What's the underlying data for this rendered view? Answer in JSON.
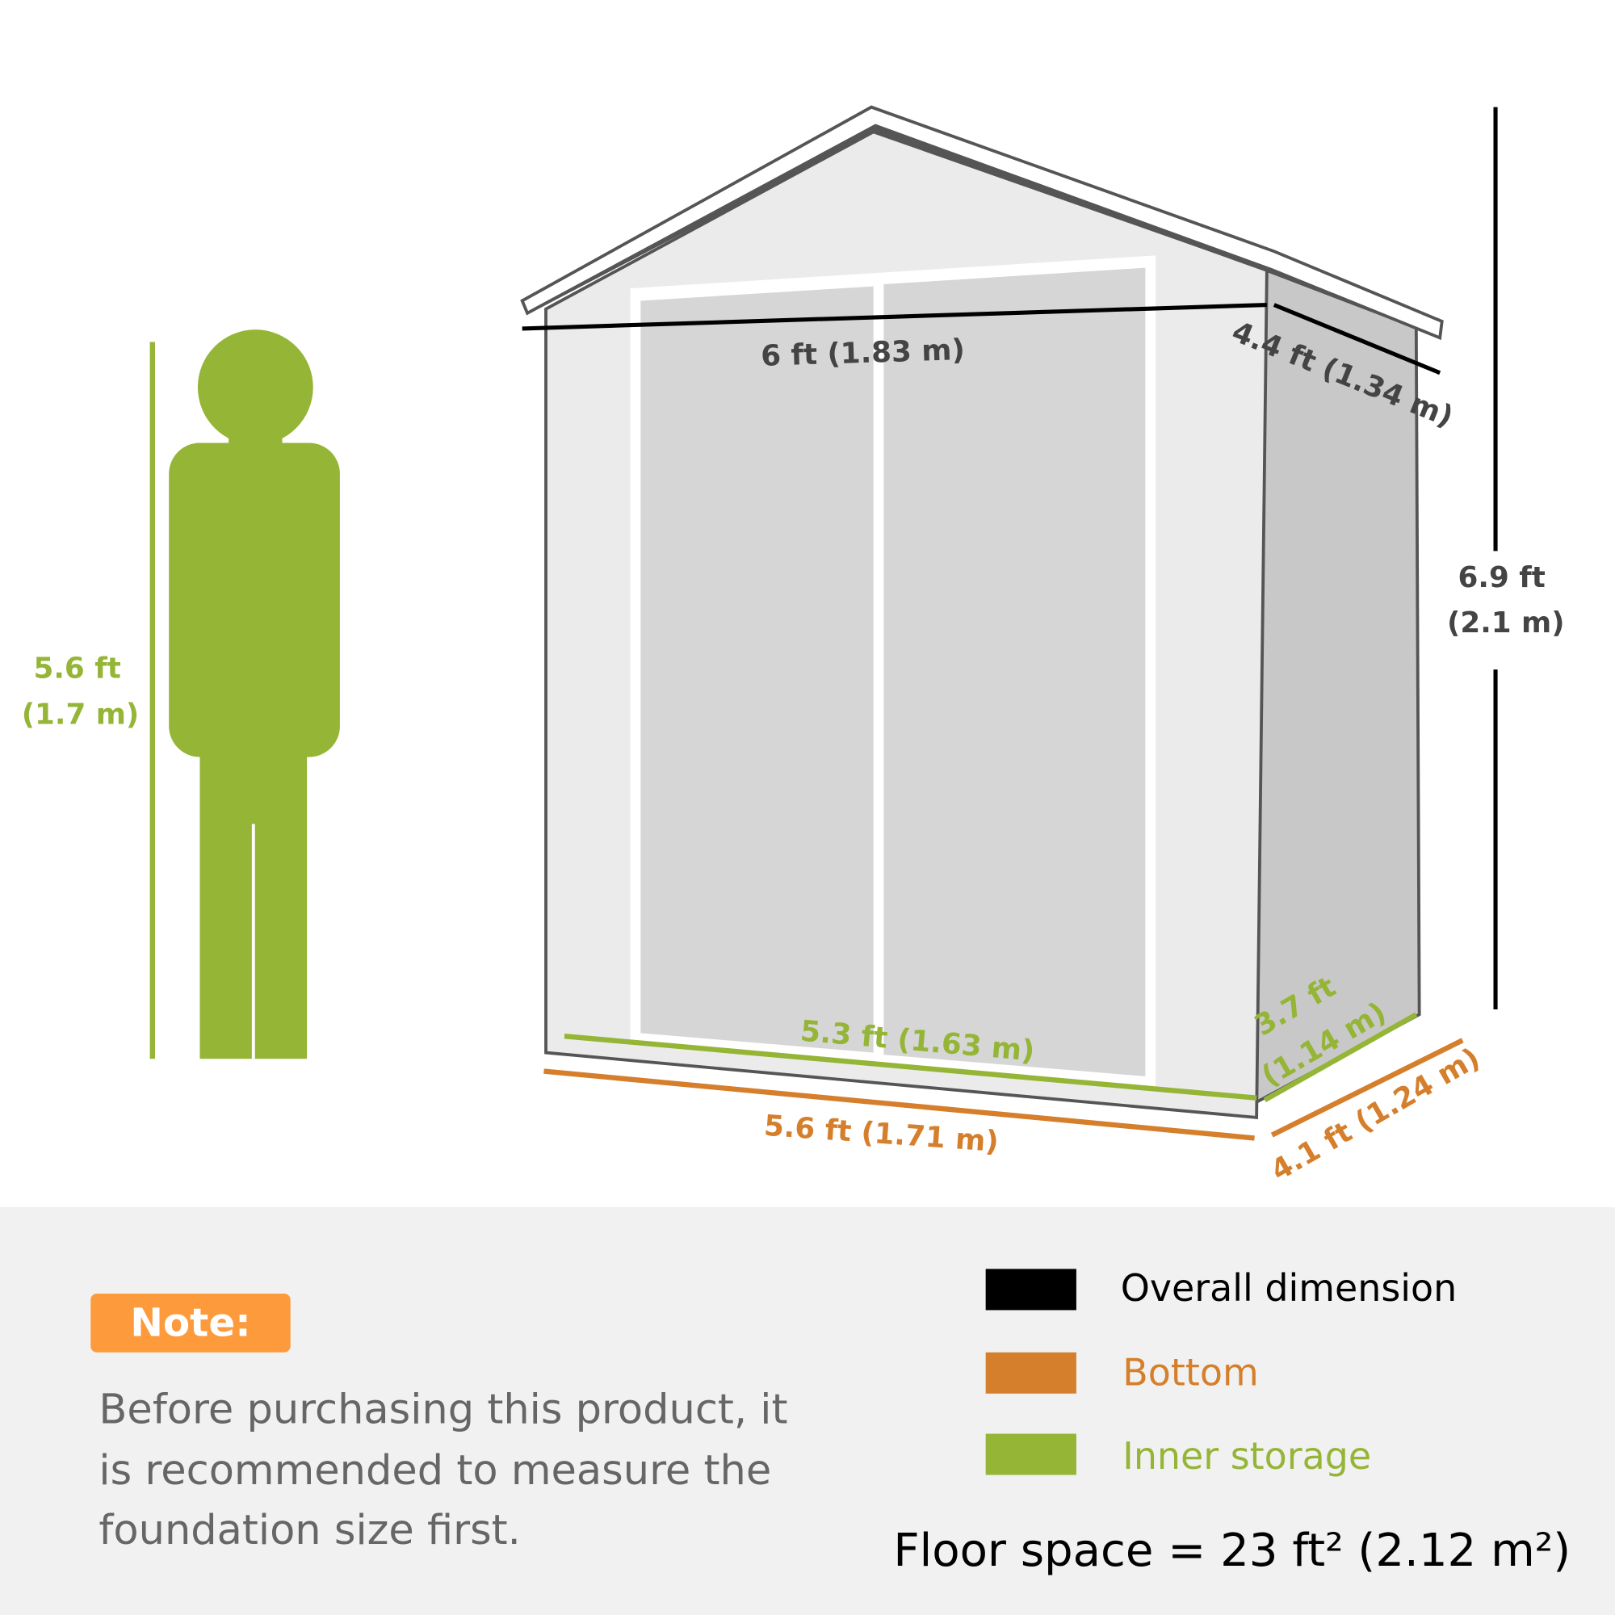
{
  "colors": {
    "overall": "#000000",
    "bottom": "#d57f2c",
    "inner": "#95b536",
    "note_badge": "#fd9a3c",
    "panel_bg": "#f1f1f1"
  },
  "person": {
    "height_ft": "5.6 ft",
    "height_m": "(1.7 m)"
  },
  "shed": {
    "overall_width": "6 ft (1.83 m)",
    "overall_depth": "4.4 ft (1.34 m)",
    "overall_height_ft": "6.9 ft",
    "overall_height_m": "(2.1 m)",
    "inner_width": "5.3 ft (1.63 m)",
    "inner_depth_ft": "3.7 ft",
    "inner_depth_m": "(1.14 m)",
    "bottom_width": "5.6 ft (1.71 m)",
    "bottom_depth": "4.1 ft (1.24 m)"
  },
  "note": {
    "badge": "Note:",
    "lines": [
      "Before purchasing this product, it",
      "is recommended to measure the",
      "foundation size first."
    ]
  },
  "legend": [
    {
      "label": "Overall dimension",
      "color": "#000000"
    },
    {
      "label": "Bottom",
      "color": "#d57f2c"
    },
    {
      "label": "Inner storage",
      "color": "#95b536"
    }
  ],
  "floor_space": "Floor space = 23 ft² (2.12 m²)"
}
